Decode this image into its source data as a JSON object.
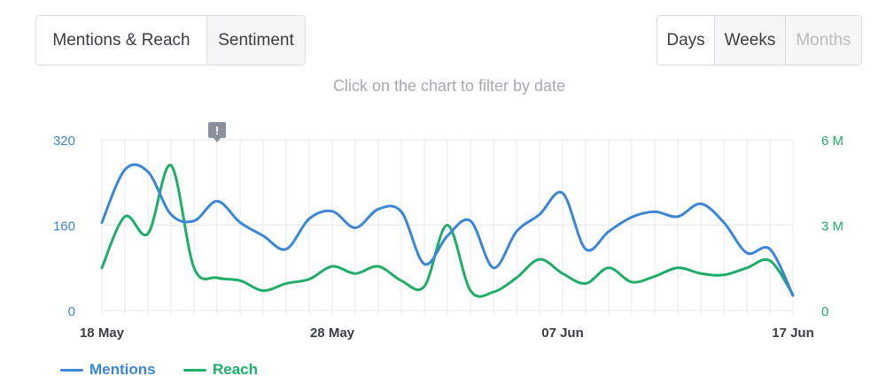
{
  "tabs": [
    {
      "label": "Mentions & Reach",
      "state": "active"
    },
    {
      "label": "Sentiment",
      "state": "inactive"
    }
  ],
  "period": [
    {
      "label": "Days",
      "state": "active"
    },
    {
      "label": "Weeks",
      "state": "inactive"
    },
    {
      "label": "Months",
      "state": "disabled"
    }
  ],
  "hint": "Click on the chart to filter by date",
  "colors": {
    "mentions": "#3b86d6",
    "reach": "#1fae68",
    "grid": "#e6e7ea",
    "marker": "#8a919c"
  },
  "chart_data": {
    "type": "line",
    "x": [
      "2023-05-18",
      "2023-05-19",
      "2023-05-20",
      "2023-05-21",
      "2023-05-22",
      "2023-05-23",
      "2023-05-24",
      "2023-05-25",
      "2023-05-26",
      "2023-05-27",
      "2023-05-28",
      "2023-05-29",
      "2023-05-30",
      "2023-05-31",
      "2023-06-01",
      "2023-06-02",
      "2023-06-03",
      "2023-06-04",
      "2023-06-05",
      "2023-06-06",
      "2023-06-07",
      "2023-06-08",
      "2023-06-09",
      "2023-06-10",
      "2023-06-11",
      "2023-06-12",
      "2023-06-13",
      "2023-06-14",
      "2023-06-15",
      "2023-06-16",
      "2023-06-17"
    ],
    "x_ticks": [
      {
        "index": 0,
        "label": "18 May"
      },
      {
        "index": 10,
        "label": "28 May"
      },
      {
        "index": 20,
        "label": "07 Jun"
      },
      {
        "index": 30,
        "label": "17 Jun"
      }
    ],
    "annotation": {
      "index": 5,
      "label": "!"
    },
    "y_left": {
      "min": 0,
      "max": 320,
      "ticks": [
        "0",
        "160",
        "320"
      ]
    },
    "y_right": {
      "min": 0,
      "max": 6000000,
      "ticks": [
        "0",
        "3 M",
        "6 M"
      ]
    },
    "grid": true,
    "legend_position": "bottom-left",
    "series": [
      {
        "name": "Mentions",
        "axis": "left",
        "values": [
          165,
          264,
          260,
          180,
          168,
          205,
          165,
          140,
          115,
          172,
          186,
          155,
          190,
          185,
          87,
          140,
          168,
          80,
          148,
          180,
          220,
          115,
          148,
          175,
          185,
          176,
          200,
          165,
          108,
          115,
          28
        ]
      },
      {
        "name": "Reach",
        "axis": "right",
        "values": [
          1500000,
          3300000,
          2700000,
          5100000,
          1500000,
          1150000,
          1050000,
          700000,
          950000,
          1100000,
          1550000,
          1300000,
          1550000,
          1050000,
          850000,
          3000000,
          700000,
          650000,
          1150000,
          1800000,
          1300000,
          950000,
          1500000,
          1000000,
          1200000,
          1500000,
          1300000,
          1250000,
          1500000,
          1750000,
          550000
        ]
      }
    ]
  }
}
